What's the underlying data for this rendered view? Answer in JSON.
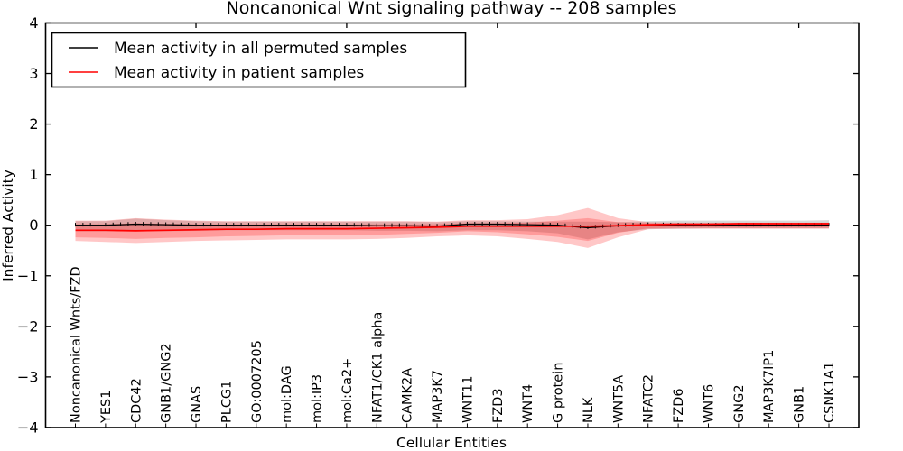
{
  "chart_data": {
    "type": "line",
    "title": "Noncanonical Wnt signaling pathway -- 208 samples",
    "xlabel": "Cellular Entities",
    "ylabel": "Inferred Activity",
    "ylim": [
      -4,
      4
    ],
    "yticks": [
      4,
      3,
      2,
      1,
      0,
      -1,
      -2,
      -3,
      -4
    ],
    "grid": false,
    "legend_position": "upper left",
    "categories": [
      "Noncanonical Wnts/FZD",
      "YES1",
      "CDC42",
      "GNB1/GNG2",
      "GNAS",
      "PLCG1",
      "GO:0007205",
      "mol:DAG",
      "mol:IP3",
      "mol:Ca2+",
      "NFAT1/CK1 alpha",
      "CAMK2A",
      "MAP3K7",
      "WNT11",
      "FZD3",
      "WNT4",
      "G protein",
      "NLK",
      "WNT5A",
      "NFATC2",
      "FZD6",
      "WNT6",
      "GNG2",
      "MAP3K7IP1",
      "GNB1",
      "CSNK1A1"
    ],
    "series": [
      {
        "name": "Mean activity in all permuted samples",
        "color": "#000000",
        "marker": "tick",
        "values": [
          0.0,
          0.0,
          0.02,
          0.01,
          0.0,
          0.0,
          0.0,
          0.0,
          0.0,
          0.0,
          -0.01,
          -0.01,
          -0.02,
          0.02,
          0.02,
          0.01,
          0.0,
          -0.05,
          -0.01,
          0.01,
          0.0,
          0.0,
          0.0,
          0.0,
          0.0,
          0.0
        ]
      },
      {
        "name": "Mean activity in patient samples",
        "color": "#ff0000",
        "marker": "none",
        "values": [
          -0.1,
          -0.1,
          -0.11,
          -0.1,
          -0.09,
          -0.08,
          -0.08,
          -0.07,
          -0.07,
          -0.07,
          -0.06,
          -0.05,
          -0.04,
          -0.02,
          -0.02,
          -0.02,
          -0.02,
          -0.02,
          -0.01,
          0.01,
          0.02,
          0.02,
          0.03,
          0.03,
          0.03,
          0.03
        ]
      }
    ],
    "bands": [
      {
        "name": "permuted-std-band",
        "color": "#808080",
        "opacity": 0.3,
        "upper": [
          0.08,
          0.08,
          0.13,
          0.1,
          0.08,
          0.07,
          0.07,
          0.07,
          0.07,
          0.07,
          0.07,
          0.07,
          0.06,
          0.08,
          0.08,
          0.07,
          0.07,
          0.07,
          0.06,
          0.08,
          0.09,
          0.09,
          0.09,
          0.09,
          0.09,
          0.1
        ],
        "lower": [
          -0.12,
          -0.12,
          -0.12,
          -0.12,
          -0.11,
          -0.1,
          -0.1,
          -0.1,
          -0.1,
          -0.1,
          -0.11,
          -0.11,
          -0.12,
          -0.1,
          -0.1,
          -0.12,
          -0.16,
          -0.28,
          -0.14,
          -0.08,
          -0.07,
          -0.06,
          -0.06,
          -0.06,
          -0.06,
          -0.06
        ]
      },
      {
        "name": "patient-std-outer-band",
        "color": "#ff0000",
        "opacity": 0.22,
        "upper": [
          0.09,
          0.09,
          0.14,
          0.11,
          0.09,
          0.08,
          0.08,
          0.08,
          0.08,
          0.08,
          0.08,
          0.08,
          0.07,
          0.1,
          0.1,
          0.12,
          0.2,
          0.34,
          0.14,
          0.06,
          0.05,
          0.05,
          0.05,
          0.05,
          0.05,
          0.05
        ],
        "lower": [
          -0.31,
          -0.33,
          -0.35,
          -0.33,
          -0.31,
          -0.3,
          -0.29,
          -0.28,
          -0.28,
          -0.28,
          -0.27,
          -0.25,
          -0.22,
          -0.2,
          -0.22,
          -0.27,
          -0.33,
          -0.45,
          -0.24,
          -0.08,
          -0.07,
          -0.07,
          -0.07,
          -0.07,
          -0.07,
          -0.07
        ]
      },
      {
        "name": "patient-std-inner-band",
        "color": "#ff0000",
        "opacity": 0.22,
        "upper": [
          0.02,
          0.02,
          0.04,
          0.03,
          0.02,
          0.02,
          0.02,
          0.02,
          0.02,
          0.02,
          0.02,
          0.02,
          0.02,
          0.04,
          0.04,
          0.05,
          0.09,
          0.14,
          0.06,
          0.04,
          0.04,
          0.04,
          0.04,
          0.04,
          0.04,
          0.04
        ],
        "lower": [
          -0.24,
          -0.25,
          -0.27,
          -0.25,
          -0.24,
          -0.22,
          -0.21,
          -0.2,
          -0.2,
          -0.2,
          -0.19,
          -0.17,
          -0.15,
          -0.12,
          -0.14,
          -0.18,
          -0.23,
          -0.31,
          -0.15,
          -0.06,
          -0.05,
          -0.05,
          -0.05,
          -0.05,
          -0.05,
          -0.05
        ]
      }
    ],
    "top_tick_indices": [
      4,
      9,
      14,
      19,
      24
    ],
    "frame_color": "#000000",
    "background_color": "#ffffff"
  },
  "legend": {
    "entries": [
      {
        "label": "Mean activity in all permuted samples",
        "color": "#000000"
      },
      {
        "label": "Mean activity in patient samples",
        "color": "#ff0000"
      }
    ]
  }
}
